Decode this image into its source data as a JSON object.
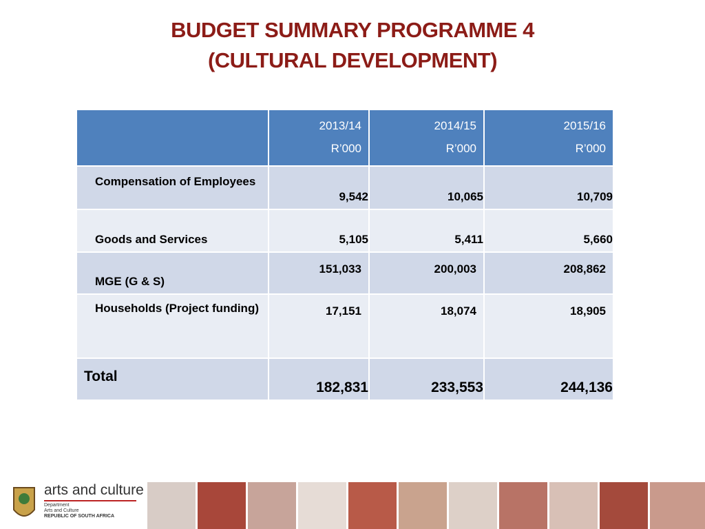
{
  "title": [
    "BUDGET SUMMARY PROGRAMME 4",
    "(CULTURAL DEVELOPMENT)"
  ],
  "table": {
    "header": [
      {
        "year": "2013/14",
        "unit": "R’000"
      },
      {
        "year": "2014/15",
        "unit": "R’000"
      },
      {
        "year": "2015/16",
        "unit": "R’000"
      }
    ],
    "rows": [
      [
        "Compensation of Employees",
        "9,542",
        "10,065",
        "10,709"
      ],
      [
        "Goods and Services",
        "5,105",
        "5,411",
        "5,660"
      ],
      [
        "MGE (G & S)",
        "151,033",
        "200,003",
        "208,862"
      ],
      [
        "Households (Project funding)",
        "17,151",
        "18,074",
        "18,905"
      ],
      [
        "Total",
        "182,831",
        "233,553",
        "244,136"
      ]
    ]
  },
  "footer": {
    "logo_text": "arts and culture",
    "department": [
      "Department",
      "Arts and Culture",
      "REPUBLIC OF SOUTH AFRICA"
    ]
  }
}
